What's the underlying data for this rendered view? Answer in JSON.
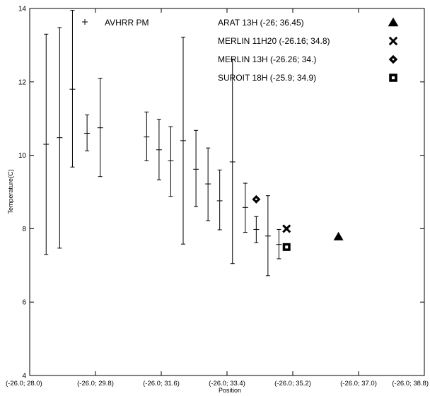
{
  "chart_data": {
    "type": "scatter",
    "title": "",
    "xlabel": "Position",
    "ylabel": "Temperature(C)",
    "ylim": [
      4,
      14
    ],
    "yticks": [
      4,
      6,
      8,
      10,
      12,
      14
    ],
    "xlim": [
      28.0,
      38.8
    ],
    "xtick_values": [
      28.0,
      29.8,
      31.6,
      33.4,
      35.2,
      37.0,
      38.8
    ],
    "xtick_labels": [
      "(-26.0; 28.0)",
      "(-26.0; 29.8)",
      "(-26.0; 31.6)",
      "(-26.0; 33.4)",
      "(-26.0; 35.2)",
      "(-26.0; 37.0)",
      "(-26.0; 38.8)"
    ],
    "grid": false,
    "legend_position": "top-right",
    "avhrr": {
      "name": "AVHRR PM",
      "points": [
        {
          "x": 28.45,
          "y": 10.3,
          "low": 7.3,
          "high": 13.3
        },
        {
          "x": 28.82,
          "y": 10.48,
          "low": 7.47,
          "high": 13.48
        },
        {
          "x": 29.17,
          "y": 11.8,
          "low": 9.68,
          "high": 13.95
        },
        {
          "x": 29.57,
          "y": 10.6,
          "low": 10.12,
          "high": 11.1
        },
        {
          "x": 29.93,
          "y": 10.75,
          "low": 9.42,
          "high": 12.1
        },
        {
          "x": 31.2,
          "y": 10.5,
          "low": 9.85,
          "high": 11.18
        },
        {
          "x": 31.54,
          "y": 10.15,
          "low": 9.33,
          "high": 10.98
        },
        {
          "x": 31.86,
          "y": 9.85,
          "low": 8.88,
          "high": 10.78
        },
        {
          "x": 32.2,
          "y": 10.4,
          "low": 7.58,
          "high": 13.22
        },
        {
          "x": 32.55,
          "y": 9.62,
          "low": 8.6,
          "high": 10.68
        },
        {
          "x": 32.88,
          "y": 9.22,
          "low": 8.22,
          "high": 10.2
        },
        {
          "x": 33.2,
          "y": 8.76,
          "low": 7.97,
          "high": 9.6
        },
        {
          "x": 33.55,
          "y": 9.82,
          "low": 7.05,
          "high": 12.62
        },
        {
          "x": 33.9,
          "y": 8.58,
          "low": 7.9,
          "high": 9.24
        },
        {
          "x": 34.2,
          "y": 7.98,
          "low": 7.62,
          "high": 8.33
        },
        {
          "x": 34.52,
          "y": 7.8,
          "low": 6.72,
          "high": 8.9
        },
        {
          "x": 34.82,
          "y": 7.57,
          "low": 7.18,
          "high": 7.98
        }
      ]
    },
    "series": [
      {
        "name": "ARAT 13H (-26; 36.45)",
        "marker": "triangle",
        "x": 36.45,
        "y": 7.78
      },
      {
        "name": "MERLIN 11H20 (-26.16; 34.8)",
        "marker": "cross",
        "x": 35.03,
        "y": 8.0
      },
      {
        "name": "MERLIN 13H (-26.26; 34.)",
        "marker": "diamond",
        "x": 34.2,
        "y": 8.8
      },
      {
        "name": "SUROIT 18H (-25.9; 34.9)",
        "marker": "square",
        "x": 35.03,
        "y": 7.5
      }
    ]
  }
}
